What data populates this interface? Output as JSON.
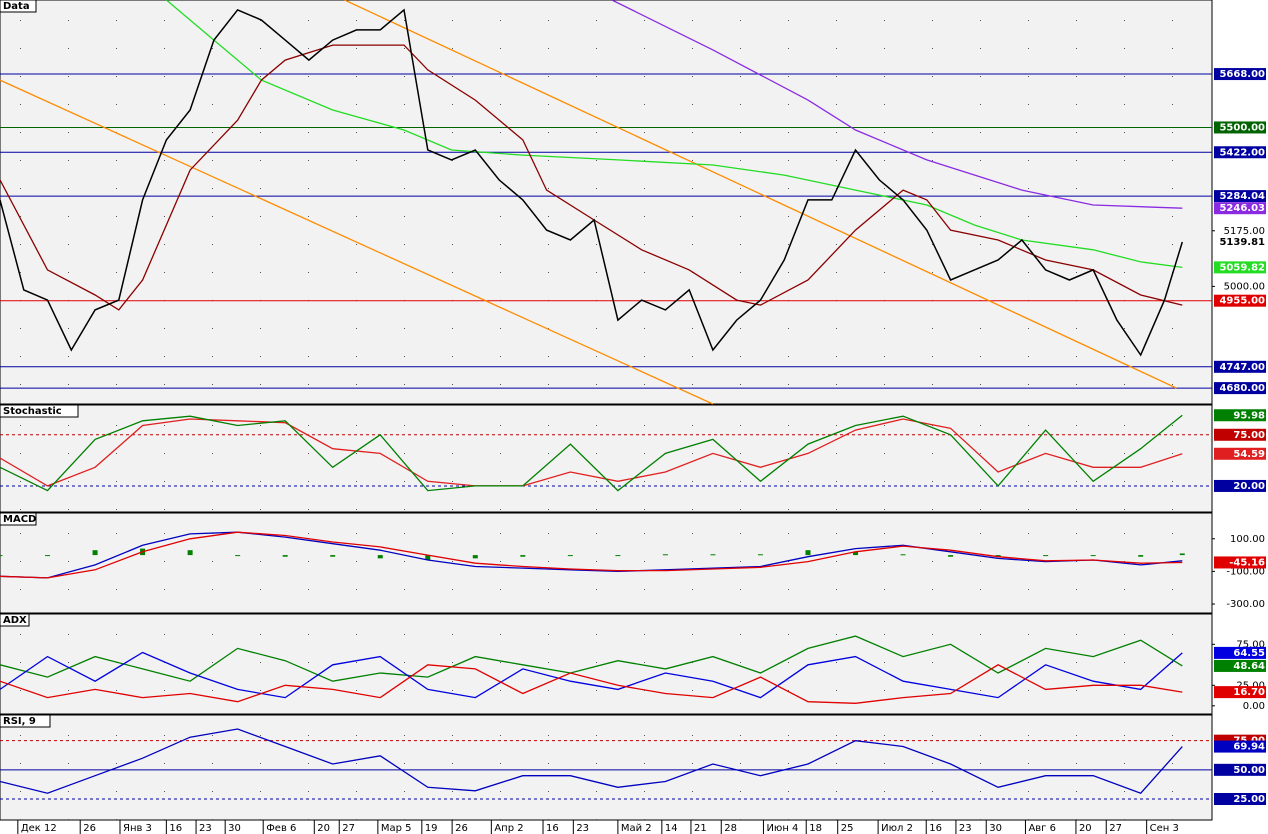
{
  "chart_data": [
    {
      "type": "line",
      "title": "Data",
      "ylim": [
        4630,
        5901
      ],
      "yticks": [
        {
          "value": 5175,
          "label": "5175.00"
        },
        {
          "value": 5000,
          "label": "5000.00"
        }
      ],
      "levels": [
        {
          "value": 5668,
          "label": "5668.00",
          "color": "#0000a0"
        },
        {
          "value": 5500,
          "label": "5500.00",
          "color": "#006400"
        },
        {
          "value": 5422,
          "label": "5422.00",
          "color": "#0000a0"
        },
        {
          "value": 5284.04,
          "label": "5284.04",
          "color": "#0000a0"
        },
        {
          "value": 4955,
          "label": "4955.00",
          "color": "#e00000"
        },
        {
          "value": 4747,
          "label": "4747.00",
          "color": "#0000a0"
        },
        {
          "value": 4680,
          "label": "4680.00",
          "color": "#0000a0"
        }
      ],
      "series": [
        {
          "color": "#ff8c00",
          "x": [
            58,
            198
          ],
          "values": [
            5901,
            4680
          ]
        },
        {
          "color": "#ff8c00",
          "x": [
            0,
            120
          ],
          "values": [
            5649,
            4630
          ]
        },
        {
          "color": "#8a2be2",
          "x": [
            103,
            120,
            136,
            144,
            156,
            172,
            184,
            199
          ],
          "values": [
            5901,
            5744,
            5586,
            5492,
            5398,
            5303,
            5256,
            5246.03
          ],
          "end_label": "5246.03"
        },
        {
          "color": "#22dd22",
          "x": [
            28,
            36,
            44,
            56,
            68,
            76,
            88,
            104,
            120,
            132,
            144,
            156,
            164,
            172,
            184,
            192,
            199
          ],
          "values": [
            5901,
            5775,
            5649,
            5555,
            5492,
            5429,
            5413,
            5398,
            5382,
            5350,
            5303,
            5256,
            5193,
            5146,
            5115,
            5077,
            5059.82
          ],
          "end_label": "5059.82"
        },
        {
          "color": "#8b0000",
          "x": [
            0,
            8,
            16,
            20,
            24,
            32,
            40,
            44,
            48,
            56,
            64,
            68,
            72,
            80,
            88,
            92,
            100,
            108,
            116,
            124,
            128,
            136,
            144,
            152,
            156,
            160,
            168,
            176,
            184,
            192,
            199
          ],
          "values": [
            5335,
            5052,
            4973,
            4926,
            5020,
            5366,
            5523,
            5649,
            5712,
            5759,
            5759,
            5759,
            5681,
            5586,
            5461,
            5303,
            5209,
            5115,
            5052,
            4957,
            4941,
            5020,
            5177,
            5303,
            5272,
            5177,
            5146,
            5083,
            5052,
            4973,
            4941
          ]
        },
        {
          "color": "#000000",
          "x": [
            0,
            4,
            8,
            12,
            16,
            20,
            24,
            28,
            32,
            36,
            40,
            44,
            48,
            52,
            56,
            60,
            64,
            68,
            72,
            76,
            80,
            84,
            88,
            92,
            96,
            100,
            104,
            108,
            112,
            116,
            120,
            124,
            128,
            132,
            136,
            140,
            144,
            148,
            152,
            156,
            160,
            164,
            168,
            172,
            176,
            180,
            184,
            188,
            192,
            196,
            199
          ],
          "values": [
            5272,
            4989,
            4957,
            4800,
            4926,
            4957,
            5272,
            5461,
            5555,
            5775,
            5870,
            5838,
            5775,
            5712,
            5775,
            5807,
            5807,
            5870,
            5429,
            5398,
            5429,
            5335,
            5272,
            5177,
            5146,
            5209,
            4894,
            4957,
            4926,
            4989,
            4800,
            4894,
            4957,
            5083,
            5272,
            5272,
            5429,
            5335,
            5272,
            5177,
            5020,
            5052,
            5083,
            5146,
            5052,
            5020,
            5052,
            4894,
            4784,
            4957,
            5139.81
          ],
          "end_label": "5139.81"
        }
      ]
    },
    {
      "type": "line",
      "title": "Stochastic",
      "ylim": [
        -8,
        107
      ],
      "levels": [
        {
          "value": 75,
          "label": "75.00",
          "color": "#c00000",
          "dash": true
        },
        {
          "value": 20,
          "label": "20.00",
          "color": "#0000a0",
          "dash": true
        }
      ],
      "series": [
        {
          "color": "#e02020",
          "x": [
            0,
            8,
            16,
            24,
            32,
            40,
            48,
            56,
            64,
            72,
            80,
            88,
            96,
            104,
            112,
            120,
            128,
            136,
            144,
            152,
            160,
            168,
            176,
            184,
            192,
            199
          ],
          "values": [
            50,
            20,
            40,
            85,
            92,
            90,
            88,
            60,
            55,
            25,
            20,
            20,
            35,
            25,
            35,
            55,
            40,
            55,
            80,
            92,
            82,
            35,
            55,
            40,
            40,
            54.59
          ],
          "end_label": "54.59"
        },
        {
          "color": "#008000",
          "x": [
            0,
            8,
            16,
            24,
            32,
            40,
            48,
            56,
            64,
            72,
            80,
            88,
            96,
            104,
            112,
            120,
            128,
            136,
            144,
            152,
            160,
            168,
            176,
            184,
            192,
            199
          ],
          "values": [
            40,
            15,
            70,
            90,
            95,
            85,
            90,
            40,
            75,
            15,
            20,
            20,
            65,
            15,
            55,
            70,
            25,
            65,
            85,
            95,
            75,
            20,
            80,
            25,
            60,
            95.98
          ],
          "end_label": "95.98"
        }
      ]
    },
    {
      "type": "line",
      "title": "MACD",
      "ylim": [
        -355,
        258
      ],
      "yticks": [
        {
          "value": 100,
          "label": "100.00"
        },
        {
          "value": -100,
          "label": "-100.00"
        },
        {
          "value": -300,
          "label": "-300.00"
        }
      ],
      "series": [
        {
          "type": "bar",
          "color": "#008000",
          "x": [
            0,
            8,
            16,
            24,
            32,
            40,
            48,
            56,
            64,
            72,
            80,
            88,
            96,
            104,
            112,
            120,
            128,
            136,
            144,
            152,
            160,
            168,
            176,
            184,
            192,
            199
          ],
          "values": [
            0,
            0,
            30,
            40,
            30,
            0,
            -10,
            -10,
            -20,
            -30,
            -20,
            -10,
            -5,
            -5,
            5,
            5,
            5,
            30,
            20,
            5,
            -10,
            -10,
            -5,
            0,
            -10,
            10
          ]
        },
        {
          "color": "#0000c0",
          "x": [
            0,
            8,
            16,
            24,
            32,
            40,
            48,
            56,
            64,
            72,
            80,
            88,
            96,
            104,
            112,
            120,
            128,
            136,
            144,
            152,
            160,
            168,
            176,
            184,
            192,
            199
          ],
          "values": [
            -130,
            -140,
            -60,
            60,
            130,
            140,
            110,
            70,
            30,
            -30,
            -70,
            -80,
            -90,
            -100,
            -90,
            -80,
            -70,
            -10,
            40,
            60,
            20,
            -20,
            -40,
            -30,
            -60,
            -35
          ]
        },
        {
          "color": "#e00000",
          "x": [
            0,
            8,
            16,
            24,
            32,
            40,
            48,
            56,
            64,
            72,
            80,
            88,
            96,
            104,
            112,
            120,
            128,
            136,
            144,
            152,
            160,
            168,
            176,
            184,
            192,
            199
          ],
          "values": [
            -130,
            -140,
            -90,
            20,
            100,
            140,
            120,
            80,
            50,
            0,
            -50,
            -70,
            -85,
            -95,
            -95,
            -85,
            -75,
            -40,
            20,
            55,
            30,
            -10,
            -35,
            -30,
            -50,
            -45.16
          ],
          "end_label": "-45.16"
        }
      ]
    },
    {
      "type": "line",
      "title": "ADX",
      "ylim": [
        -10,
        112
      ],
      "yticks": [
        {
          "value": 75,
          "label": "75.00"
        },
        {
          "value": 25,
          "label": "25.00"
        },
        {
          "value": 0,
          "label": "0.00"
        }
      ],
      "series": [
        {
          "color": "#008000",
          "x": [
            0,
            8,
            16,
            24,
            32,
            40,
            48,
            56,
            64,
            72,
            80,
            88,
            96,
            104,
            112,
            120,
            128,
            136,
            144,
            152,
            160,
            168,
            176,
            184,
            192,
            199
          ],
          "values": [
            50,
            35,
            60,
            45,
            30,
            70,
            55,
            30,
            40,
            35,
            60,
            50,
            40,
            55,
            45,
            60,
            40,
            70,
            85,
            60,
            75,
            40,
            70,
            60,
            80,
            48.64
          ],
          "end_label": "48.64"
        },
        {
          "color": "#0000e0",
          "x": [
            0,
            8,
            16,
            24,
            32,
            40,
            48,
            56,
            64,
            72,
            80,
            88,
            96,
            104,
            112,
            120,
            128,
            136,
            144,
            152,
            160,
            168,
            176,
            184,
            192,
            199
          ],
          "values": [
            20,
            60,
            30,
            65,
            40,
            20,
            10,
            50,
            60,
            20,
            10,
            45,
            30,
            20,
            40,
            30,
            10,
            50,
            60,
            30,
            20,
            10,
            50,
            30,
            20,
            64.55
          ],
          "end_label": "64.55"
        },
        {
          "color": "#e00000",
          "x": [
            0,
            8,
            16,
            24,
            32,
            40,
            48,
            56,
            64,
            72,
            80,
            88,
            96,
            104,
            112,
            120,
            128,
            136,
            144,
            152,
            160,
            168,
            176,
            184,
            192,
            199
          ],
          "values": [
            30,
            10,
            20,
            10,
            15,
            5,
            25,
            20,
            10,
            50,
            45,
            15,
            40,
            25,
            15,
            10,
            35,
            5,
            3,
            10,
            15,
            50,
            20,
            25,
            25,
            16.7
          ],
          "end_label": "16.70"
        }
      ]
    },
    {
      "type": "line",
      "title": "RSI, 9",
      "ylim": [
        7,
        97
      ],
      "xlim": [
        0,
        204
      ],
      "levels": [
        {
          "value": 75,
          "label": "75.00",
          "color": "#c00000",
          "dash": true
        },
        {
          "value": 50,
          "label": "50.00",
          "color": "#0000a0"
        },
        {
          "value": 25,
          "label": "25.00",
          "color": "#0000a0",
          "dash": true
        }
      ],
      "series": [
        {
          "color": "#0000c0",
          "x": [
            0,
            8,
            16,
            24,
            32,
            40,
            48,
            56,
            64,
            72,
            80,
            88,
            96,
            104,
            112,
            120,
            128,
            136,
            144,
            152,
            160,
            168,
            176,
            184,
            192,
            199
          ],
          "values": [
            40,
            30,
            45,
            60,
            78,
            85,
            70,
            55,
            62,
            35,
            32,
            45,
            45,
            35,
            40,
            55,
            45,
            55,
            75,
            70,
            55,
            35,
            45,
            45,
            30,
            69.94
          ],
          "end_label": "69.94"
        }
      ],
      "xticks": [
        {
          "value": 3,
          "label": "Дек 12"
        },
        {
          "value": 13.5,
          "label": "26"
        },
        {
          "value": 20.2,
          "label": "Янв 3"
        },
        {
          "value": 28,
          "label": "16"
        },
        {
          "value": 33,
          "label": "23"
        },
        {
          "value": 37.9,
          "label": "30"
        },
        {
          "value": 44.3,
          "label": "Фев 6"
        },
        {
          "value": 52.9,
          "label": "20"
        },
        {
          "value": 57.1,
          "label": "27"
        },
        {
          "value": 63.6,
          "label": "Мар 5"
        },
        {
          "value": 71,
          "label": "19"
        },
        {
          "value": 76.1,
          "label": "26"
        },
        {
          "value": 82.7,
          "label": "Апр 2"
        },
        {
          "value": 91.4,
          "label": "16"
        },
        {
          "value": 96.5,
          "label": "23"
        },
        {
          "value": 104,
          "label": "Май 2"
        },
        {
          "value": 111.4,
          "label": "14"
        },
        {
          "value": 116.3,
          "label": "21"
        },
        {
          "value": 121.4,
          "label": "28"
        },
        {
          "value": 128.5,
          "label": "Июн 4"
        },
        {
          "value": 135.7,
          "label": "18"
        },
        {
          "value": 141,
          "label": "25"
        },
        {
          "value": 147.8,
          "label": "Июл 2"
        },
        {
          "value": 155.9,
          "label": "16"
        },
        {
          "value": 160.9,
          "label": "23"
        },
        {
          "value": 166,
          "label": "30"
        },
        {
          "value": 172.6,
          "label": "Авг 6"
        },
        {
          "value": 181.1,
          "label": "20"
        },
        {
          "value": 186.2,
          "label": "27"
        },
        {
          "value": 193,
          "label": "Сен 3"
        }
      ]
    }
  ]
}
